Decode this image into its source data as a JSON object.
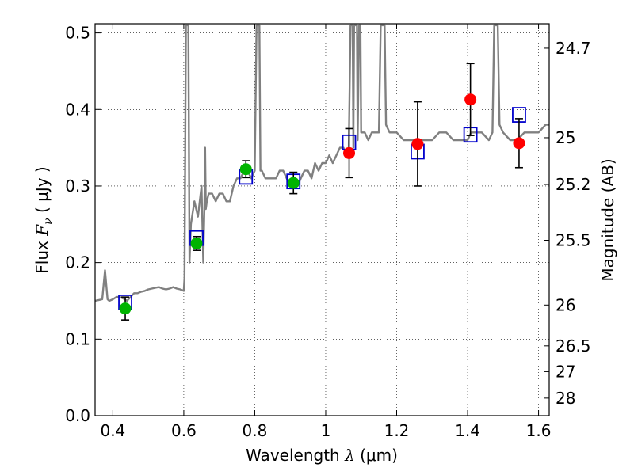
{
  "chart_data": {
    "type": "scatter",
    "xlabel": "Wavelength  λ (μm)",
    "ylabel": "Flux  F_ν  ( μJy )",
    "ylabel_parts": {
      "pre": "Flux  ",
      "sym": "F",
      "sub": "ν",
      "unit": "  ( μJy )"
    },
    "xlabel_parts": {
      "pre": "Wavelength  ",
      "sym": "λ",
      "unit": " (μm)"
    },
    "y2label": "Magnitude (AB)",
    "xlim": [
      0.35,
      1.63
    ],
    "ylim": [
      0.0,
      0.512
    ],
    "grid": true,
    "x_ticks": [
      0.4,
      0.6,
      0.8,
      1.0,
      1.2,
      1.4,
      1.6
    ],
    "x_tick_labels": [
      "0.4",
      "0.6",
      "0.8",
      "1",
      "1.2",
      "1.4",
      "1.6"
    ],
    "y_ticks": [
      0.0,
      0.1,
      0.2,
      0.3,
      0.4,
      0.5
    ],
    "y_tick_labels": [
      "0.0",
      "0.1",
      "0.2",
      "0.3",
      "0.4",
      "0.5"
    ],
    "y2_ticks": [
      {
        "label": "24.7",
        "flux": 0.48
      },
      {
        "label": "25",
        "flux": 0.3631
      },
      {
        "label": "25.2",
        "flux": 0.302
      },
      {
        "label": "25.5",
        "flux": 0.2291
      },
      {
        "label": "26",
        "flux": 0.1445
      },
      {
        "label": "26.5",
        "flux": 0.0912
      },
      {
        "label": "27",
        "flux": 0.0575
      },
      {
        "label": "28",
        "flux": 0.0229
      }
    ],
    "series": [
      {
        "marker": "circle",
        "color": "#00b400",
        "x": [
          0.435,
          0.636,
          0.775,
          0.909
        ],
        "y": [
          0.14,
          0.225,
          0.322,
          0.304
        ],
        "err": [
          0.015,
          0.009,
          0.011,
          0.014
        ]
      },
      {
        "marker": "circle",
        "color": "#ff0000",
        "x": [
          1.066,
          1.259,
          1.408,
          1.545
        ],
        "y": [
          0.343,
          0.355,
          0.413,
          0.356
        ],
        "err": [
          0.032,
          0.055,
          0.047,
          0.032
        ]
      },
      {
        "marker": "open-square",
        "color": "#0000cc",
        "x": [
          0.435,
          0.636,
          0.775,
          0.909,
          1.066,
          1.259,
          1.408,
          1.545
        ],
        "y": [
          0.148,
          0.232,
          0.312,
          0.306,
          0.357,
          0.345,
          0.367,
          0.393
        ]
      },
      {
        "marker": "line",
        "color": "#808080",
        "x": [
          0.35,
          0.37,
          0.378,
          0.385,
          0.39,
          0.4,
          0.41,
          0.42,
          0.43,
          0.44,
          0.45,
          0.46,
          0.47,
          0.48,
          0.49,
          0.5,
          0.51,
          0.52,
          0.53,
          0.54,
          0.55,
          0.56,
          0.57,
          0.58,
          0.59,
          0.6,
          0.602,
          0.606,
          0.608,
          0.609,
          0.612,
          0.613,
          0.616,
          0.62,
          0.63,
          0.64,
          0.65,
          0.655,
          0.658,
          0.66,
          0.662,
          0.665,
          0.67,
          0.68,
          0.69,
          0.7,
          0.71,
          0.72,
          0.73,
          0.74,
          0.75,
          0.76,
          0.77,
          0.78,
          0.79,
          0.8,
          0.805,
          0.806,
          0.808,
          0.81,
          0.812,
          0.813,
          0.816,
          0.82,
          0.83,
          0.84,
          0.85,
          0.86,
          0.87,
          0.88,
          0.89,
          0.9,
          0.91,
          0.92,
          0.93,
          0.94,
          0.95,
          0.96,
          0.97,
          0.98,
          0.99,
          1.0,
          1.01,
          1.02,
          1.03,
          1.04,
          1.05,
          1.06,
          1.065,
          1.07,
          1.072,
          1.076,
          1.078,
          1.08,
          1.082,
          1.084,
          1.086,
          1.088,
          1.09,
          1.094,
          1.096,
          1.098,
          1.1,
          1.11,
          1.12,
          1.13,
          1.14,
          1.15,
          1.155,
          1.157,
          1.159,
          1.16,
          1.162,
          1.164,
          1.166,
          1.17,
          1.18,
          1.2,
          1.22,
          1.24,
          1.26,
          1.28,
          1.3,
          1.32,
          1.34,
          1.36,
          1.38,
          1.4,
          1.41,
          1.42,
          1.44,
          1.46,
          1.47,
          1.475,
          1.477,
          1.479,
          1.481,
          1.483,
          1.485,
          1.49,
          1.5,
          1.52,
          1.54,
          1.56,
          1.58,
          1.6,
          1.62,
          1.63
        ],
        "y": [
          0.15,
          0.152,
          0.19,
          0.152,
          0.15,
          0.152,
          0.155,
          0.155,
          0.153,
          0.15,
          0.155,
          0.16,
          0.16,
          0.162,
          0.163,
          0.165,
          0.166,
          0.167,
          0.168,
          0.166,
          0.165,
          0.166,
          0.168,
          0.166,
          0.165,
          0.163,
          0.18,
          0.51,
          0.51,
          0.51,
          0.51,
          0.51,
          0.2,
          0.25,
          0.28,
          0.26,
          0.3,
          0.2,
          0.27,
          0.35,
          0.27,
          0.28,
          0.29,
          0.29,
          0.28,
          0.29,
          0.29,
          0.28,
          0.28,
          0.3,
          0.31,
          0.31,
          0.32,
          0.32,
          0.31,
          0.32,
          0.51,
          0.51,
          0.51,
          0.51,
          0.51,
          0.51,
          0.32,
          0.32,
          0.31,
          0.31,
          0.31,
          0.31,
          0.32,
          0.32,
          0.31,
          0.3,
          0.3,
          0.3,
          0.31,
          0.32,
          0.32,
          0.31,
          0.33,
          0.32,
          0.33,
          0.33,
          0.34,
          0.33,
          0.34,
          0.35,
          0.35,
          0.34,
          0.35,
          0.51,
          0.51,
          0.51,
          0.35,
          0.51,
          0.51,
          0.51,
          0.51,
          0.51,
          0.36,
          0.51,
          0.51,
          0.51,
          0.37,
          0.37,
          0.36,
          0.37,
          0.37,
          0.37,
          0.51,
          0.51,
          0.51,
          0.51,
          0.51,
          0.51,
          0.51,
          0.38,
          0.37,
          0.37,
          0.36,
          0.36,
          0.36,
          0.36,
          0.36,
          0.37,
          0.37,
          0.36,
          0.36,
          0.36,
          0.37,
          0.37,
          0.37,
          0.36,
          0.37,
          0.51,
          0.51,
          0.51,
          0.51,
          0.51,
          0.51,
          0.38,
          0.37,
          0.36,
          0.36,
          0.37,
          0.37,
          0.37,
          0.38,
          0.38
        ]
      }
    ]
  }
}
